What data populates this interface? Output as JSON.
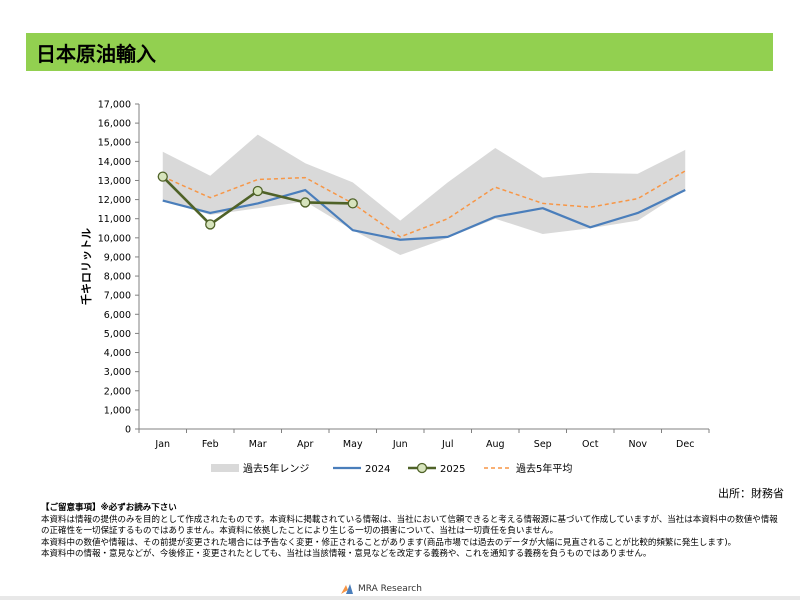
{
  "page": {
    "title": "日本原油輸入",
    "source": "出所：財務省",
    "disclaimer": {
      "heading": "【ご留意事項】※必ずお読み下さい",
      "lines": [
        "本資料は情報の提供のみを目的として作成されたものです。本資料に掲載されている情報は、当社において信頼できると考える情報源に基づいて作成していますが、当社は本資料中の数値や情報の正確性を一切保証するものではありません。本資料に依拠したことにより生じる一切の損害について、当社は一切責任を負いません。",
        "本資料中の数値や情報は、その前提が変更された場合には予告なく変更・修正されることがあります(商品市場では過去のデータが大幅に見直されることが比較的頻繁に発生します)。",
        "本資料中の情報・意見などが、今後修正・変更されたとしても、当社は当該情報・意見などを改定する義務や、これを通知する義務を負うものではありません。"
      ]
    },
    "logo_text": "MRA Research"
  },
  "colors": {
    "title_bar": "#92d050",
    "range_band": "#d9d9d9",
    "series_2024": "#4a7ebb",
    "series_2025": "#4f6228",
    "marker_fill": "#d7e4bd",
    "avg_5y": "#f79646",
    "grid": "#d9d9d9",
    "axis": "#808080"
  },
  "chart_data": {
    "type": "line",
    "categories": [
      "Jan",
      "Feb",
      "Mar",
      "Apr",
      "May",
      "Jun",
      "Jul",
      "Aug",
      "Sep",
      "Oct",
      "Nov",
      "Dec"
    ],
    "ylabel": "千キロリットル",
    "xlabel": "",
    "ylim": [
      0,
      17000
    ],
    "y_ticks": [
      0,
      1000,
      2000,
      3000,
      4000,
      5000,
      6000,
      7000,
      8000,
      9000,
      10000,
      11000,
      12000,
      13000,
      14000,
      15000,
      16000,
      17000
    ],
    "y_tick_labels": [
      "0",
      "1,000",
      "2,000",
      "3,000",
      "4,000",
      "5,000",
      "6,000",
      "7,000",
      "8,000",
      "9,000",
      "10,000",
      "11,000",
      "12,000",
      "13,000",
      "14,000",
      "15,000",
      "16,000",
      "17,000"
    ],
    "grid": false,
    "legend_position": "bottom",
    "range_band": {
      "name": "過去5年レンジ",
      "max": [
        14500,
        13250,
        15400,
        13900,
        12900,
        10900,
        12900,
        14700,
        13150,
        13400,
        13350,
        14600
      ],
      "min": [
        11950,
        11200,
        11550,
        11900,
        10400,
        9100,
        10000,
        11000,
        10200,
        10500,
        10900,
        12500
      ]
    },
    "series": [
      {
        "name": "2024",
        "style": "solid",
        "values": [
          11950,
          11300,
          11800,
          12500,
          10400,
          9900,
          10050,
          11100,
          11550,
          10550,
          11300,
          12500
        ]
      },
      {
        "name": "2025",
        "style": "solid-markers",
        "values": [
          13200,
          10700,
          12450,
          11850,
          11800,
          null,
          null,
          null,
          null,
          null,
          null,
          null
        ]
      },
      {
        "name": "過去5年平均",
        "style": "dashed",
        "values": [
          13200,
          12100,
          13050,
          13150,
          11800,
          10050,
          11000,
          12650,
          11800,
          11600,
          12050,
          13500
        ]
      }
    ]
  }
}
